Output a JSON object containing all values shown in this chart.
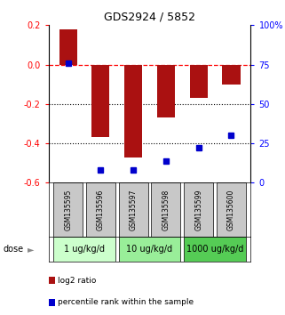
{
  "title": "GDS2924 / 5852",
  "samples": [
    "GSM135595",
    "GSM135596",
    "GSM135597",
    "GSM135598",
    "GSM135599",
    "GSM135600"
  ],
  "log2_ratios": [
    0.18,
    -0.37,
    -0.47,
    -0.27,
    -0.17,
    -0.1
  ],
  "percentile_ranks": [
    76,
    8,
    8,
    14,
    22,
    30
  ],
  "dose_groups": [
    {
      "label": "1 ug/kg/d",
      "samples": [
        0,
        1
      ],
      "color": "#ccffcc"
    },
    {
      "label": "10 ug/kg/d",
      "samples": [
        2,
        3
      ],
      "color": "#99ee99"
    },
    {
      "label": "1000 ug/kg/d",
      "samples": [
        4,
        5
      ],
      "color": "#55cc55"
    }
  ],
  "bar_color": "#aa1111",
  "dot_color": "#0000cc",
  "left_ylim": [
    -0.6,
    0.2
  ],
  "right_ylim": [
    0,
    100
  ],
  "left_yticks": [
    -0.6,
    -0.4,
    -0.2,
    0.0,
    0.2
  ],
  "right_yticks": [
    0,
    25,
    50,
    75,
    100
  ],
  "right_yticklabels": [
    "0",
    "25",
    "50",
    "75",
    "100%"
  ],
  "hline_y": 0.0,
  "dotted_lines": [
    -0.2,
    -0.4
  ],
  "bar_width": 0.55,
  "background_color": "#ffffff",
  "legend_red_label": "log2 ratio",
  "legend_blue_label": "percentile rank within the sample",
  "dose_label": "dose"
}
